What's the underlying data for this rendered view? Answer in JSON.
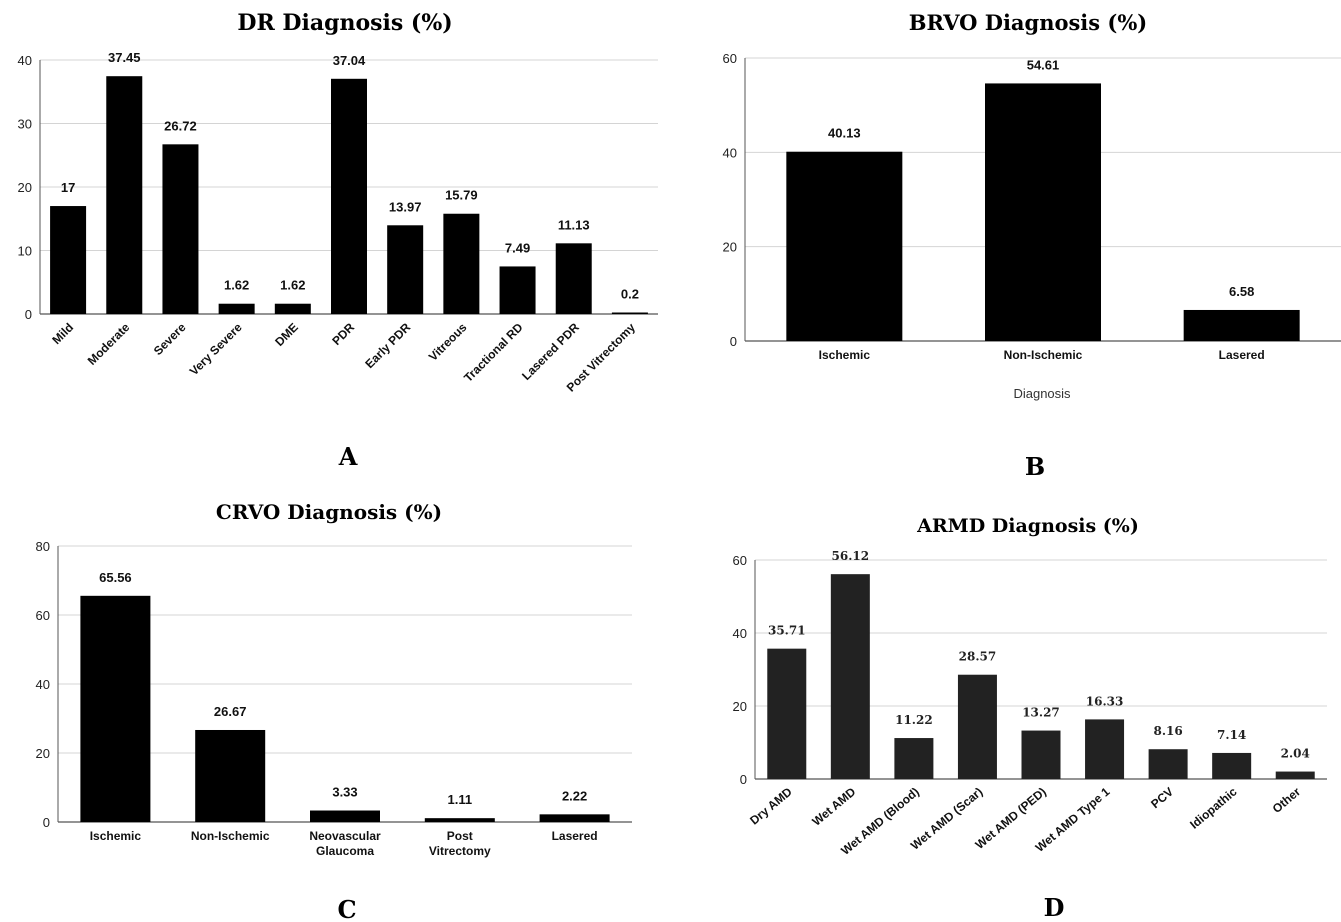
{
  "chart_data": [
    {
      "panel_letter": "A",
      "type": "bar",
      "title": "DR Diagnosis (%)",
      "categories": [
        "Mild",
        "Moderate",
        "Severe",
        "Very Severe",
        "DME",
        "PDR",
        "Early PDR",
        "Vitreous",
        "Tractional RD",
        "Lasered PDR",
        "Post Vitrectomy"
      ],
      "values": [
        17,
        37.45,
        26.72,
        1.62,
        1.62,
        37.04,
        13.97,
        15.79,
        7.49,
        11.13,
        0.2
      ],
      "value_labels": [
        "17",
        "37.45",
        "26.72",
        "1.62",
        "1.62",
        "37.04",
        "13.97",
        "15.79",
        "7.49",
        "11.13",
        "0.2"
      ],
      "ylim": [
        0,
        40
      ],
      "yticks": [
        "0",
        "10",
        "20",
        "30",
        "40"
      ],
      "xlabel": "",
      "ylabel": "",
      "grid": true,
      "bar_color": "#000000",
      "rotated_category_labels": true
    },
    {
      "panel_letter": "B",
      "type": "bar",
      "title": "BRVO Diagnosis (%)",
      "categories": [
        "Ischemic",
        "Non-Ischemic",
        "Lasered"
      ],
      "values": [
        40.13,
        54.61,
        6.58
      ],
      "value_labels": [
        "40.13",
        "54.61",
        "6.58"
      ],
      "ylim": [
        0,
        60
      ],
      "yticks": [
        "0",
        "20",
        "40",
        "60"
      ],
      "xlabel": "Diagnosis",
      "ylabel": "",
      "grid": true,
      "bar_color": "#000000",
      "rotated_category_labels": false
    },
    {
      "panel_letter": "C",
      "type": "bar",
      "title": "CRVO Diagnosis (%)",
      "categories": [
        "Ischemic",
        "Non-Ischemic",
        "Neovascular Glaucoma",
        "Post Vitrectomy",
        "Lasered"
      ],
      "values": [
        65.56,
        26.67,
        3.33,
        1.11,
        2.22
      ],
      "value_labels": [
        "65.56",
        "26.67",
        "3.33",
        "1.11",
        "2.22"
      ],
      "ylim": [
        0,
        80
      ],
      "yticks": [
        "0",
        "20",
        "40",
        "60",
        "80"
      ],
      "xlabel": "",
      "ylabel": "",
      "grid": true,
      "bar_color": "#000000",
      "rotated_category_labels": false
    },
    {
      "panel_letter": "D",
      "type": "bar",
      "title": "ARMD Diagnosis (%)",
      "categories": [
        "Dry AMD",
        "Wet AMD",
        "Wet AMD (Blood)",
        "Wet AMD (Scar)",
        "Wet AMD (PED)",
        "Wet AMD Type 1",
        "PCV",
        "Idiopathic",
        "Other"
      ],
      "values": [
        35.71,
        56.12,
        11.22,
        28.57,
        13.27,
        16.33,
        8.16,
        7.14,
        2.04
      ],
      "value_labels": [
        "35.71",
        "56.12",
        "11.22",
        "28.57",
        "13.27",
        "16.33",
        "8.16",
        "7.14",
        "2.04"
      ],
      "ylim": [
        0,
        60
      ],
      "yticks": [
        "0",
        "20",
        "40",
        "60"
      ],
      "xlabel": "",
      "ylabel": "",
      "grid": true,
      "bar_color": "#222222",
      "rotated_category_labels": true
    }
  ]
}
